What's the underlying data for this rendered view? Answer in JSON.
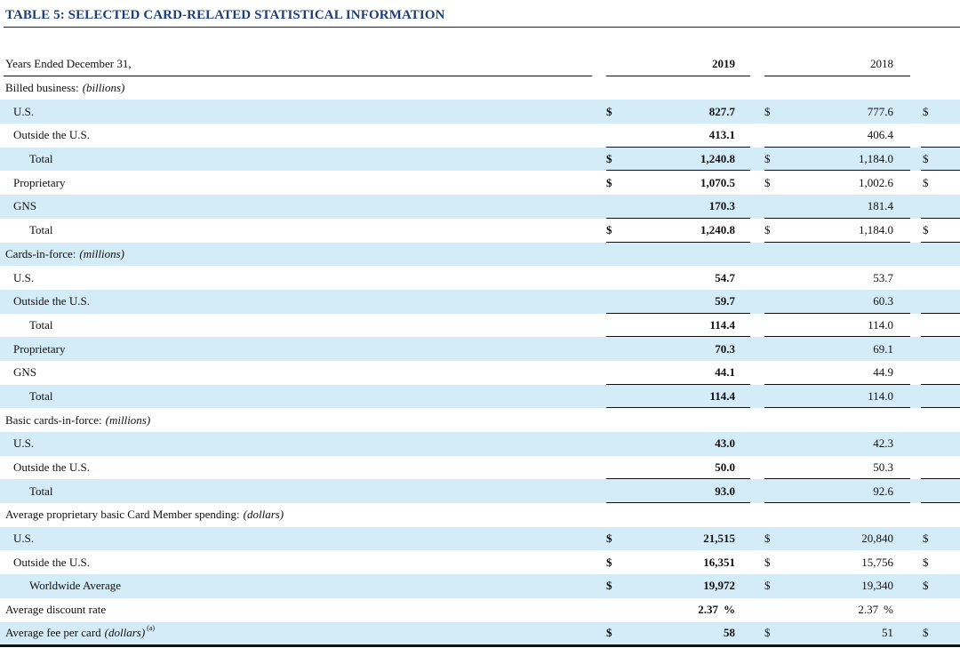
{
  "title": "TABLE 5: SELECTED CARD-RELATED STATISTICAL INFORMATION",
  "header": {
    "label": "Years Ended December 31,",
    "y2019": "2019",
    "y2018": "2018"
  },
  "rows": [
    {
      "id": "billed-business-heading",
      "label": "Billed business:",
      "label_italic": "(billions)",
      "indent": 0,
      "shade": false
    },
    {
      "id": "billed-us",
      "label": "U.S.",
      "indent": 1,
      "shade": true,
      "d2019": "$",
      "v2019": "827.7",
      "d2018": "$",
      "v2018": "777.6",
      "dnext": "$"
    },
    {
      "id": "billed-outside-us",
      "label": "Outside the U.S.",
      "indent": 1,
      "shade": false,
      "v2019": "413.1",
      "v2018": "406.4",
      "rule_bottom": true
    },
    {
      "id": "billed-total",
      "label": "Total",
      "indent": 2,
      "shade": true,
      "d2019": "$",
      "v2019": "1,240.8",
      "d2018": "$",
      "v2018": "1,184.0",
      "dnext": "$",
      "rule_bottom": true
    },
    {
      "id": "billed-proprietary",
      "label": "Proprietary",
      "indent": 1,
      "shade": false,
      "d2019": "$",
      "v2019": "1,070.5",
      "d2018": "$",
      "v2018": "1,002.6",
      "dnext": "$"
    },
    {
      "id": "billed-gns",
      "label": "GNS",
      "indent": 1,
      "shade": true,
      "v2019": "170.3",
      "v2018": "181.4",
      "rule_bottom": true
    },
    {
      "id": "billed-total-2",
      "label": "Total",
      "indent": 2,
      "shade": false,
      "d2019": "$",
      "v2019": "1,240.8",
      "d2018": "$",
      "v2018": "1,184.0",
      "dnext": "$",
      "rule_bottom": true
    },
    {
      "id": "cards-heading",
      "label": "Cards-in-force:",
      "label_italic": "(millions)",
      "indent": 0,
      "shade": true
    },
    {
      "id": "cards-us",
      "label": "U.S.",
      "indent": 1,
      "shade": false,
      "v2019": "54.7",
      "v2018": "53.7"
    },
    {
      "id": "cards-outside-us",
      "label": "Outside the U.S.",
      "indent": 1,
      "shade": true,
      "v2019": "59.7",
      "v2018": "60.3",
      "rule_bottom": true
    },
    {
      "id": "cards-total",
      "label": "Total",
      "indent": 2,
      "shade": false,
      "v2019": "114.4",
      "v2018": "114.0",
      "rule_bottom": true
    },
    {
      "id": "cards-proprietary",
      "label": "Proprietary",
      "indent": 1,
      "shade": true,
      "v2019": "70.3",
      "v2018": "69.1"
    },
    {
      "id": "cards-gns",
      "label": "GNS",
      "indent": 1,
      "shade": false,
      "v2019": "44.1",
      "v2018": "44.9",
      "rule_bottom": true
    },
    {
      "id": "cards-total-2",
      "label": "Total",
      "indent": 2,
      "shade": true,
      "v2019": "114.4",
      "v2018": "114.0",
      "rule_bottom": true
    },
    {
      "id": "basic-heading",
      "label": "Basic cards-in-force:",
      "label_italic": "(millions)",
      "indent": 0,
      "shade": false
    },
    {
      "id": "basic-us",
      "label": "U.S.",
      "indent": 1,
      "shade": true,
      "v2019": "43.0",
      "v2018": "42.3"
    },
    {
      "id": "basic-outside-us",
      "label": "Outside the U.S.",
      "indent": 1,
      "shade": false,
      "v2019": "50.0",
      "v2018": "50.3",
      "rule_bottom": true
    },
    {
      "id": "basic-total",
      "label": "Total",
      "indent": 2,
      "shade": true,
      "v2019": "93.0",
      "v2018": "92.6",
      "rule_bottom": true
    },
    {
      "id": "spending-heading",
      "label": "Average proprietary basic Card Member spending:",
      "label_italic": "(dollars)",
      "indent": 0,
      "shade": false
    },
    {
      "id": "spending-us",
      "label": "U.S.",
      "indent": 1,
      "shade": true,
      "d2019": "$",
      "v2019": "21,515",
      "d2018": "$",
      "v2018": "20,840",
      "dnext": "$"
    },
    {
      "id": "spending-outside-us",
      "label": "Outside the U.S.",
      "indent": 1,
      "shade": false,
      "d2019": "$",
      "v2019": "16,351",
      "d2018": "$",
      "v2018": "15,756",
      "dnext": "$"
    },
    {
      "id": "spending-worldwide",
      "label": "Worldwide Average",
      "indent": 2,
      "shade": true,
      "d2019": "$",
      "v2019": "19,972",
      "d2018": "$",
      "v2018": "19,340",
      "dnext": "$"
    },
    {
      "id": "discount-rate",
      "label": "Average discount rate",
      "indent": 0,
      "shade": false,
      "v2019": "2.37",
      "p2019": "%",
      "v2018": "2.37",
      "p2018": "%"
    },
    {
      "id": "fee-per-card",
      "label": "Average fee per card",
      "label_italic": "(dollars)",
      "footnote": "(a)",
      "indent": 0,
      "shade": true,
      "d2019": "$",
      "v2019": "58",
      "d2018": "$",
      "v2018": "51",
      "dnext": "$",
      "bottom_rule": true
    }
  ]
}
